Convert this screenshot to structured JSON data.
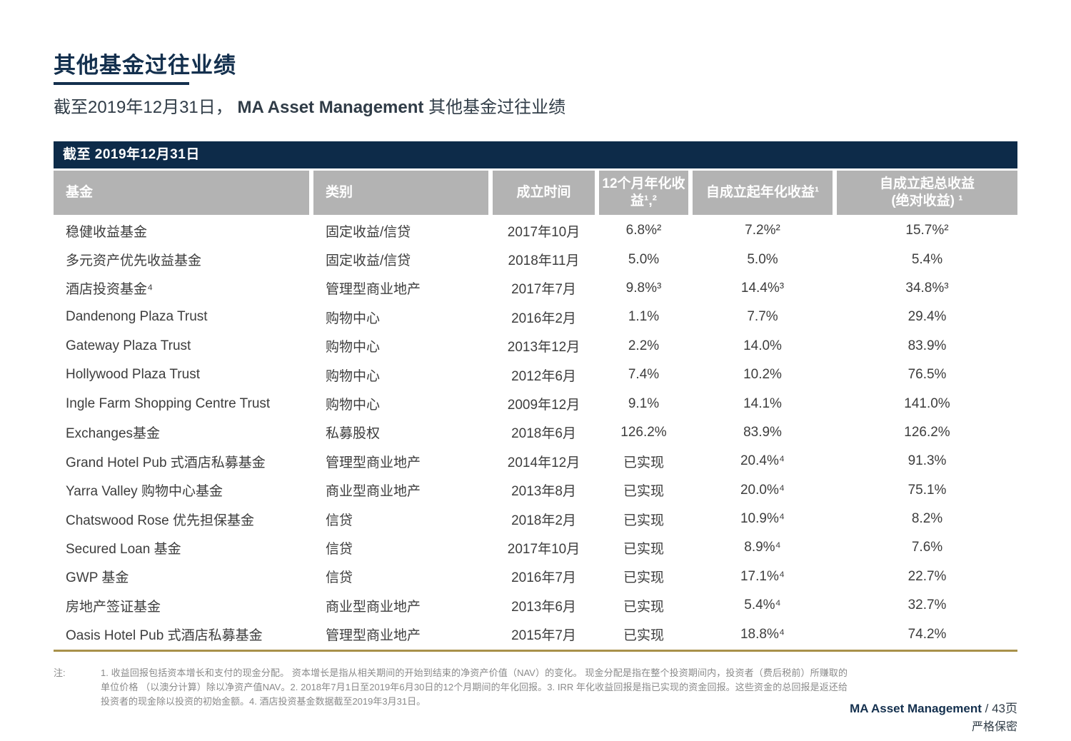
{
  "page": {
    "title": "其他基金过往业绩",
    "subtitle_prefix": "截至2019年12月31日， ",
    "subtitle_brand": "MA Asset Management",
    "subtitle_suffix": " 其他基金过往业绩"
  },
  "table": {
    "banner": "截至 2019年12月31日",
    "columns": [
      "基金",
      "类别",
      "成立时间",
      "12个月年化收\n益¹,²",
      "自成立起年化收益¹",
      "自成立起总收益\n(绝对收益) ¹"
    ],
    "rows": [
      [
        "稳健收益基金",
        "固定收益/信贷",
        "2017年10月",
        "6.8%²",
        "7.2%²",
        "15.7%²"
      ],
      [
        "多元资产优先收益基金",
        "固定收益/信贷",
        "2018年11月",
        "5.0%",
        "5.0%",
        "5.4%"
      ],
      [
        "酒店投资基金⁴",
        "管理型商业地产",
        "2017年7月",
        "9.8%³",
        "14.4%³",
        "34.8%³"
      ],
      [
        "Dandenong Plaza Trust",
        "购物中心",
        "2016年2月",
        "1.1%",
        "7.7%",
        "29.4%"
      ],
      [
        "Gateway Plaza Trust",
        "购物中心",
        "2013年12月",
        "2.2%",
        "14.0%",
        "83.9%"
      ],
      [
        "Hollywood Plaza Trust",
        "购物中心",
        "2012年6月",
        "7.4%",
        "10.2%",
        "76.5%"
      ],
      [
        "Ingle Farm Shopping Centre Trust",
        "购物中心",
        "2009年12月",
        "9.1%",
        "14.1%",
        "141.0%"
      ],
      [
        "Exchanges基金",
        "私募股权",
        "2018年6月",
        "126.2%",
        "83.9%",
        "126.2%"
      ],
      [
        "Grand Hotel Pub 式酒店私募基金",
        "管理型商业地产",
        "2014年12月",
        "已实现",
        "20.4%⁴",
        "91.3%"
      ],
      [
        "Yarra Valley 购物中心基金",
        "商业型商业地产",
        "2013年8月",
        "已实现",
        "20.0%⁴",
        "75.1%"
      ],
      [
        "Chatswood Rose 优先担保基金",
        "信贷",
        "2018年2月",
        "已实现",
        "10.9%⁴",
        "8.2%"
      ],
      [
        "Secured Loan 基金",
        "信贷",
        "2017年10月",
        "已实现",
        "8.9%⁴",
        "7.6%"
      ],
      [
        "GWP 基金",
        "信贷",
        "2016年7月",
        "已实现",
        "17.1%⁴",
        "22.7%"
      ],
      [
        "房地产签证基金",
        "商业型商业地产",
        "2013年6月",
        "已实现",
        "5.4%⁴",
        "32.7%"
      ],
      [
        "Oasis Hotel Pub 式酒店私募基金",
        "管理型商业地产",
        "2015年7月",
        "已实现",
        "18.8%⁴",
        "74.2%"
      ]
    ]
  },
  "footnote": {
    "label": "注:",
    "text": "1. 收益回报包括资本增长和支付的现金分配。 资本增长是指从相关期间的开始到结束的净资产价值（NAV）的变化。 现金分配是指在整个投资期间内，投资者（费后税前）所赚取的单位价格 （以澳分计算）除以净资产值NAV。2. 2018年7月1日至2019年6月30日的12个月期间的年化回报。3. IRR 年化收益回报是指已实现的资金回报。这些资金的总回报是返还给投资者的现金除以投资的初始金额。4. 酒店投资基金数据截至2019年3月31日。"
  },
  "footer": {
    "brand": "MA Asset Management",
    "page_suffix": " / 43页",
    "confidential": "严格保密"
  },
  "colors": {
    "navy": "#0d2b49",
    "title_navy": "#14304e",
    "header_gray": "#b3b3b3",
    "gold": "#a8914a"
  }
}
